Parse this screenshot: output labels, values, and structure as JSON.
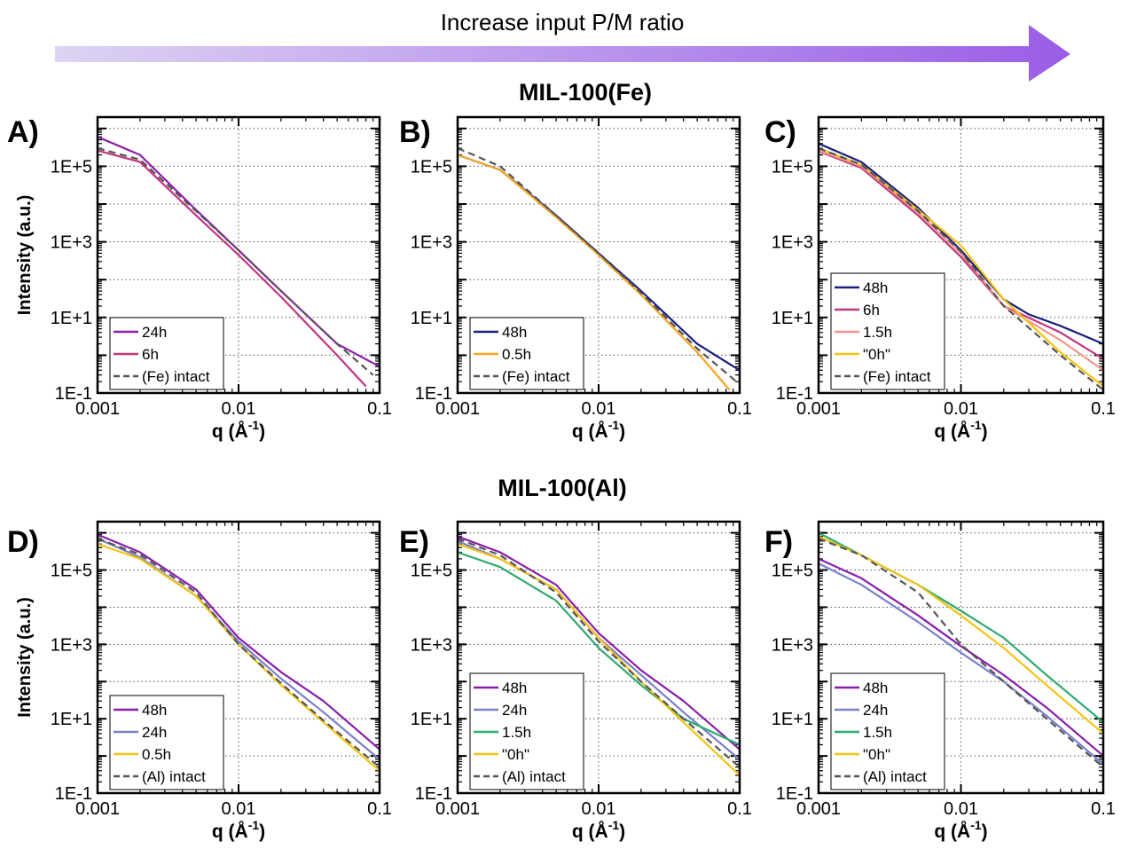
{
  "banner": {
    "text": "Increase input P/M ratio",
    "gradient_start": "#ddd3f3",
    "gradient_end": "#9a5de6"
  },
  "sections": {
    "fe_title": "MIL-100(Fe)",
    "al_title": "MIL-100(Al)"
  },
  "axis": {
    "ylabel": "Intensity (a.u.)",
    "xlabel_main": "q (Å",
    "xlabel_sup": "-1",
    "xlabel_end": ")",
    "x_ticks": [
      "0.001",
      "0.01",
      "0.1"
    ],
    "y_ticks": [
      "1E-1",
      "1E+1",
      "1E+3",
      "1E+5"
    ],
    "xlim": [
      0.001,
      0.1
    ],
    "ylim": [
      0.1,
      2000000
    ],
    "scale": "log-log",
    "grid": true
  },
  "chart_data": [
    {
      "type": "line",
      "panel": "A)",
      "group": "MIL-100(Fe)",
      "legend_placement": "bottom-left",
      "series": [
        {
          "name": "24h",
          "color": "#8a1ea8",
          "dashed": false,
          "points": [
            [
              0.001,
              600000
            ],
            [
              0.002,
              200000
            ],
            [
              0.005,
              7000
            ],
            [
              0.01,
              600
            ],
            [
              0.02,
              50
            ],
            [
              0.05,
              2
            ],
            [
              0.1,
              0.5
            ]
          ]
        },
        {
          "name": "6h",
          "color": "#c2357e",
          "dashed": false,
          "points": [
            [
              0.001,
              260000
            ],
            [
              0.002,
              130000
            ],
            [
              0.005,
              5000
            ],
            [
              0.01,
              450
            ],
            [
              0.02,
              35
            ],
            [
              0.05,
              1
            ],
            [
              0.08,
              0.15
            ]
          ]
        },
        {
          "name": "(Fe) intact",
          "color": "#555555",
          "dashed": true,
          "points": [
            [
              0.001,
              300000
            ],
            [
              0.002,
              150000
            ],
            [
              0.005,
              6500
            ],
            [
              0.01,
              600
            ],
            [
              0.02,
              50
            ],
            [
              0.05,
              2
            ],
            [
              0.09,
              0.3
            ]
          ]
        }
      ]
    },
    {
      "type": "line",
      "panel": "B)",
      "group": "MIL-100(Fe)",
      "legend_placement": "bottom-left",
      "series": [
        {
          "name": "48h",
          "color": "#1a1f7e",
          "dashed": false,
          "points": [
            [
              0.001,
              200000
            ],
            [
              0.002,
              80000
            ],
            [
              0.005,
              5000
            ],
            [
              0.01,
              500
            ],
            [
              0.02,
              50
            ],
            [
              0.05,
              2
            ],
            [
              0.1,
              0.4
            ]
          ]
        },
        {
          "name": "0.5h",
          "color": "#f5a623",
          "dashed": false,
          "points": [
            [
              0.001,
              200000
            ],
            [
              0.002,
              80000
            ],
            [
              0.005,
              4500
            ],
            [
              0.01,
              450
            ],
            [
              0.02,
              40
            ],
            [
              0.05,
              1.2
            ],
            [
              0.085,
              0.12
            ]
          ]
        },
        {
          "name": "(Fe) intact",
          "color": "#555555",
          "dashed": true,
          "points": [
            [
              0.001,
              300000
            ],
            [
              0.002,
              100000
            ],
            [
              0.005,
              5000
            ],
            [
              0.01,
              500
            ],
            [
              0.02,
              45
            ],
            [
              0.05,
              1.5
            ],
            [
              0.095,
              0.2
            ]
          ]
        }
      ]
    },
    {
      "type": "line",
      "panel": "C)",
      "group": "MIL-100(Fe)",
      "legend_placement": "bottom-left",
      "series": [
        {
          "name": "48h",
          "color": "#1a1f7e",
          "dashed": false,
          "points": [
            [
              0.001,
              400000
            ],
            [
              0.002,
              130000
            ],
            [
              0.005,
              8000
            ],
            [
              0.01,
              600
            ],
            [
              0.02,
              30
            ],
            [
              0.03,
              12
            ],
            [
              0.05,
              6
            ],
            [
              0.1,
              2
            ]
          ]
        },
        {
          "name": "6h",
          "color": "#c2357e",
          "dashed": false,
          "points": [
            [
              0.001,
              250000
            ],
            [
              0.002,
              90000
            ],
            [
              0.005,
              5000
            ],
            [
              0.01,
              400
            ],
            [
              0.02,
              20
            ],
            [
              0.05,
              4
            ],
            [
              0.1,
              0.8
            ]
          ]
        },
        {
          "name": "1.5h",
          "color": "#f4958a",
          "dashed": false,
          "points": [
            [
              0.001,
              260000
            ],
            [
              0.002,
              100000
            ],
            [
              0.005,
              6000
            ],
            [
              0.01,
              500
            ],
            [
              0.02,
              20
            ],
            [
              0.05,
              2.5
            ],
            [
              0.1,
              0.4
            ]
          ]
        },
        {
          "name": "\"0h\"",
          "color": "#f2c414",
          "dashed": false,
          "points": [
            [
              0.001,
              300000
            ],
            [
              0.002,
              110000
            ],
            [
              0.005,
              7000
            ],
            [
              0.01,
              800
            ],
            [
              0.02,
              30
            ],
            [
              0.05,
              1.2
            ],
            [
              0.1,
              0.15
            ]
          ]
        },
        {
          "name": "(Fe) intact",
          "color": "#555555",
          "dashed": true,
          "points": [
            [
              0.001,
              300000
            ],
            [
              0.002,
              110000
            ],
            [
              0.005,
              6500
            ],
            [
              0.01,
              550
            ],
            [
              0.02,
              20
            ],
            [
              0.05,
              1
            ],
            [
              0.1,
              0.12
            ]
          ]
        }
      ]
    },
    {
      "type": "line",
      "panel": "D)",
      "group": "MIL-100(Al)",
      "legend_placement": "bottom-left",
      "series": [
        {
          "name": "48h",
          "color": "#8a1ea8",
          "dashed": false,
          "points": [
            [
              0.001,
              900000
            ],
            [
              0.002,
              300000
            ],
            [
              0.005,
              30000
            ],
            [
              0.01,
              1500
            ],
            [
              0.02,
              180
            ],
            [
              0.04,
              30
            ],
            [
              0.1,
              1.5
            ]
          ]
        },
        {
          "name": "24h",
          "color": "#7b80c9",
          "dashed": false,
          "points": [
            [
              0.001,
              700000
            ],
            [
              0.002,
              220000
            ],
            [
              0.005,
              20000
            ],
            [
              0.01,
              1200
            ],
            [
              0.02,
              120
            ],
            [
              0.04,
              15
            ],
            [
              0.1,
              0.8
            ]
          ]
        },
        {
          "name": "0.5h",
          "color": "#f2c414",
          "dashed": false,
          "points": [
            [
              0.001,
              500000
            ],
            [
              0.002,
              200000
            ],
            [
              0.005,
              20000
            ],
            [
              0.01,
              1000
            ],
            [
              0.02,
              80
            ],
            [
              0.04,
              8
            ],
            [
              0.1,
              0.4
            ]
          ]
        },
        {
          "name": "(Al) intact",
          "color": "#555555",
          "dashed": true,
          "points": [
            [
              0.001,
              700000
            ],
            [
              0.002,
              260000
            ],
            [
              0.005,
              25000
            ],
            [
              0.01,
              1000
            ],
            [
              0.02,
              90
            ],
            [
              0.04,
              9
            ],
            [
              0.1,
              0.5
            ]
          ]
        }
      ]
    },
    {
      "type": "line",
      "panel": "E)",
      "group": "MIL-100(Al)",
      "legend_placement": "bottom-left",
      "series": [
        {
          "name": "48h",
          "color": "#8a1ea8",
          "dashed": false,
          "points": [
            [
              0.001,
              800000
            ],
            [
              0.002,
              300000
            ],
            [
              0.005,
              40000
            ],
            [
              0.01,
              2000
            ],
            [
              0.02,
              200
            ],
            [
              0.04,
              30
            ],
            [
              0.1,
              1.5
            ]
          ]
        },
        {
          "name": "24h",
          "color": "#7b80c9",
          "dashed": false,
          "points": [
            [
              0.001,
              600000
            ],
            [
              0.002,
              200000
            ],
            [
              0.005,
              30000
            ],
            [
              0.01,
              1500
            ],
            [
              0.02,
              150
            ],
            [
              0.04,
              15
            ],
            [
              0.1,
              0.8
            ]
          ]
        },
        {
          "name": "1.5h",
          "color": "#2eaa6e",
          "dashed": false,
          "points": [
            [
              0.001,
              300000
            ],
            [
              0.002,
              120000
            ],
            [
              0.005,
              15000
            ],
            [
              0.01,
              800
            ],
            [
              0.02,
              80
            ],
            [
              0.04,
              10
            ],
            [
              0.1,
              2
            ]
          ]
        },
        {
          "name": "\"0h\"",
          "color": "#f2c414",
          "dashed": false,
          "points": [
            [
              0.001,
              500000
            ],
            [
              0.002,
              200000
            ],
            [
              0.005,
              30000
            ],
            [
              0.01,
              1500
            ],
            [
              0.02,
              100
            ],
            [
              0.04,
              8
            ],
            [
              0.1,
              0.3
            ]
          ]
        },
        {
          "name": "(Al) intact",
          "color": "#555555",
          "dashed": true,
          "points": [
            [
              0.001,
              700000
            ],
            [
              0.002,
              250000
            ],
            [
              0.005,
              25000
            ],
            [
              0.01,
              1200
            ],
            [
              0.02,
              100
            ],
            [
              0.04,
              10
            ],
            [
              0.1,
              0.5
            ]
          ]
        }
      ]
    },
    {
      "type": "line",
      "panel": "F)",
      "group": "MIL-100(Al)",
      "legend_placement": "bottom-left",
      "series": [
        {
          "name": "48h",
          "color": "#8a1ea8",
          "dashed": false,
          "points": [
            [
              0.001,
              200000
            ],
            [
              0.002,
              60000
            ],
            [
              0.005,
              6000
            ],
            [
              0.01,
              900
            ],
            [
              0.02,
              150
            ],
            [
              0.04,
              20
            ],
            [
              0.1,
              1
            ]
          ]
        },
        {
          "name": "24h",
          "color": "#7b80c9",
          "dashed": false,
          "points": [
            [
              0.001,
              150000
            ],
            [
              0.002,
              40000
            ],
            [
              0.005,
              4000
            ],
            [
              0.01,
              600
            ],
            [
              0.02,
              100
            ],
            [
              0.04,
              12
            ],
            [
              0.1,
              0.6
            ]
          ]
        },
        {
          "name": "1.5h",
          "color": "#2eaa6e",
          "dashed": false,
          "points": [
            [
              0.001,
              1000000
            ],
            [
              0.002,
              250000
            ],
            [
              0.005,
              40000
            ],
            [
              0.01,
              8000
            ],
            [
              0.02,
              1500
            ],
            [
              0.04,
              150
            ],
            [
              0.1,
              8
            ]
          ]
        },
        {
          "name": "\"0h\"",
          "color": "#f2c414",
          "dashed": false,
          "points": [
            [
              0.001,
              800000
            ],
            [
              0.002,
              250000
            ],
            [
              0.005,
              40000
            ],
            [
              0.01,
              6000
            ],
            [
              0.02,
              800
            ],
            [
              0.04,
              80
            ],
            [
              0.1,
              4
            ]
          ]
        },
        {
          "name": "(Al) intact",
          "color": "#555555",
          "dashed": true,
          "points": [
            [
              0.001,
              700000
            ],
            [
              0.002,
              250000
            ],
            [
              0.005,
              25000
            ],
            [
              0.01,
              1000
            ],
            [
              0.02,
              100
            ],
            [
              0.04,
              10
            ],
            [
              0.1,
              0.5
            ]
          ]
        }
      ]
    }
  ]
}
